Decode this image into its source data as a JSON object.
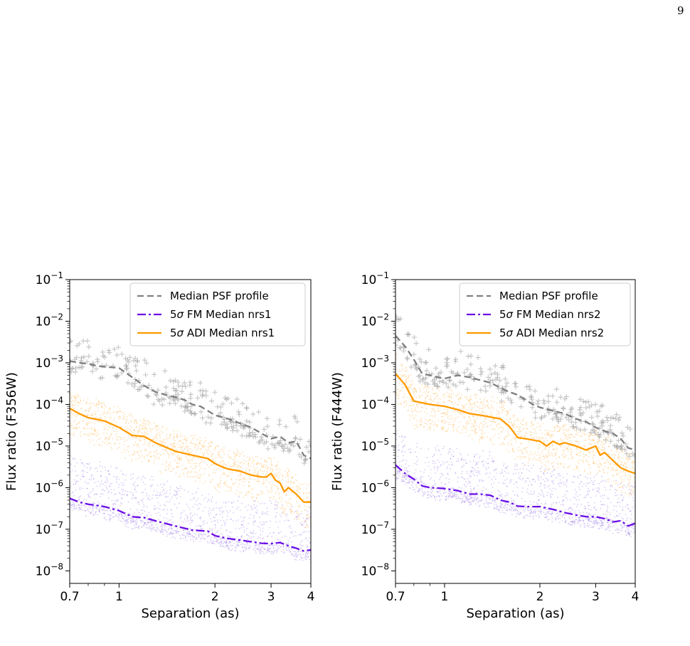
{
  "page_number": "9",
  "colors": {
    "psf": "#7f7f7f",
    "fm": "#6a0ee6",
    "adi": "#ff9a00",
    "psf_scatter": "#9a9a9a",
    "fm_scatter": "#a98ce8",
    "adi_scatter": "#ffbf66"
  },
  "chart_data": [
    {
      "type": "line",
      "xlabel": "Separation (as)",
      "ylabel": "Flux ratio (F356W)",
      "xscale": "log",
      "yscale": "log",
      "xlim": [
        0.7,
        4
      ],
      "ylim": [
        5e-09,
        0.1
      ],
      "x_ticks": [
        {
          "v": 0.7,
          "label": "0.7"
        },
        {
          "v": 1,
          "label": "1"
        },
        {
          "v": 2,
          "label": "2"
        },
        {
          "v": 3,
          "label": "3"
        },
        {
          "v": 4,
          "label": "4"
        }
      ],
      "y_ticks": [
        {
          "v": 1e-08,
          "base": "10",
          "exp": "−8"
        },
        {
          "v": 1e-07,
          "base": "10",
          "exp": "−7"
        },
        {
          "v": 1e-06,
          "base": "10",
          "exp": "−6"
        },
        {
          "v": 1e-05,
          "base": "10",
          "exp": "−5"
        },
        {
          "v": 0.0001,
          "base": "10",
          "exp": "−4"
        },
        {
          "v": 0.001,
          "base": "10",
          "exp": "−3"
        },
        {
          "v": 0.01,
          "base": "10",
          "exp": "−2"
        },
        {
          "v": 0.1,
          "base": "10",
          "exp": "−1"
        }
      ],
      "legend_position": "top-right",
      "series": [
        {
          "name": "Median PSF profile",
          "style": "dashed",
          "color_key": "psf",
          "x": [
            0.7,
            0.75,
            0.8,
            0.85,
            0.9,
            0.95,
            1.0,
            1.1,
            1.2,
            1.3,
            1.4,
            1.5,
            1.6,
            1.7,
            1.8,
            1.9,
            2.0,
            2.2,
            2.4,
            2.6,
            2.8,
            3.0,
            3.2,
            3.4,
            3.6,
            3.8,
            4.0
          ],
          "y": [
            0.0011,
            0.001,
            0.00095,
            0.00085,
            0.0008,
            0.00078,
            0.00075,
            0.00045,
            0.00028,
            0.0002,
            0.00017,
            0.00015,
            0.00013,
            0.0001,
            9e-05,
            7e-05,
            5.5e-05,
            4.5e-05,
            3.5e-05,
            2.8e-05,
            2e-05,
            1.5e-05,
            1.7e-05,
            1.2e-05,
            1.3e-05,
            6e-06,
            5e-06
          ]
        },
        {
          "name": "5σ FM Median nrs1",
          "style": "dashdot",
          "color_key": "fm",
          "x": [
            0.7,
            0.75,
            0.8,
            0.9,
            1.0,
            1.1,
            1.2,
            1.3,
            1.5,
            1.7,
            1.9,
            2.0,
            2.2,
            2.4,
            2.6,
            2.8,
            3.0,
            3.2,
            3.4,
            3.6,
            3.8,
            4.0
          ],
          "y": [
            5.5e-07,
            4.5e-07,
            4e-07,
            3.5e-07,
            2.8e-07,
            2e-07,
            1.9e-07,
            1.6e-07,
            1.2e-07,
            9.5e-08,
            9e-08,
            7e-08,
            6e-08,
            5.5e-08,
            5e-08,
            4.6e-08,
            4.5e-08,
            4.8e-08,
            4e-08,
            3.5e-08,
            3e-08,
            3.2e-08
          ]
        },
        {
          "name": "5σ ADI Median nrs1",
          "style": "solid",
          "color_key": "adi",
          "x": [
            0.7,
            0.75,
            0.8,
            0.9,
            1.0,
            1.1,
            1.2,
            1.3,
            1.5,
            1.7,
            1.9,
            2.0,
            2.1,
            2.2,
            2.4,
            2.6,
            2.8,
            2.9,
            3.0,
            3.1,
            3.2,
            3.3,
            3.4,
            3.6,
            3.8,
            4.0
          ],
          "y": [
            8e-05,
            6e-05,
            4.8e-05,
            4e-05,
            2.8e-05,
            1.8e-05,
            1.7e-05,
            1.2e-05,
            7.5e-06,
            6e-06,
            5e-06,
            3.8e-06,
            3.2e-06,
            2.8e-06,
            2.5e-06,
            2e-06,
            1.8e-06,
            1.8e-06,
            2.2e-06,
            1.5e-06,
            1.3e-06,
            8e-07,
            1e-06,
            7e-07,
            4.5e-07,
            4.5e-07
          ]
        }
      ]
    },
    {
      "type": "line",
      "xlabel": "Separation (as)",
      "ylabel": "Flux ratio (F444W)",
      "xscale": "log",
      "yscale": "log",
      "xlim": [
        0.7,
        4
      ],
      "ylim": [
        5e-09,
        0.1
      ],
      "x_ticks": [
        {
          "v": 0.7,
          "label": "0.7"
        },
        {
          "v": 1,
          "label": "1"
        },
        {
          "v": 2,
          "label": "2"
        },
        {
          "v": 3,
          "label": "3"
        },
        {
          "v": 4,
          "label": "4"
        }
      ],
      "y_ticks": [
        {
          "v": 1e-08,
          "base": "10",
          "exp": "−8"
        },
        {
          "v": 1e-07,
          "base": "10",
          "exp": "−7"
        },
        {
          "v": 1e-06,
          "base": "10",
          "exp": "−6"
        },
        {
          "v": 1e-05,
          "base": "10",
          "exp": "−5"
        },
        {
          "v": 0.0001,
          "base": "10",
          "exp": "−4"
        },
        {
          "v": 0.001,
          "base": "10",
          "exp": "−3"
        },
        {
          "v": 0.01,
          "base": "10",
          "exp": "−2"
        },
        {
          "v": 0.1,
          "base": "10",
          "exp": "−1"
        }
      ],
      "legend_position": "top-right",
      "series": [
        {
          "name": "Median PSF profile",
          "style": "dashed",
          "color_key": "psf",
          "x": [
            0.7,
            0.75,
            0.8,
            0.85,
            0.9,
            0.95,
            1.0,
            1.1,
            1.2,
            1.3,
            1.4,
            1.5,
            1.6,
            1.7,
            1.8,
            1.9,
            2.0,
            2.2,
            2.4,
            2.6,
            2.8,
            3.0,
            3.2,
            3.4,
            3.6,
            3.8,
            4.0
          ],
          "y": [
            0.0045,
            0.0025,
            0.0012,
            0.00055,
            0.0005,
            0.00045,
            0.00042,
            0.0005,
            0.00045,
            0.00038,
            0.00033,
            0.00025,
            0.0002,
            0.00017,
            0.00013,
            0.0001,
            8.5e-05,
            7e-05,
            6e-05,
            4.5e-05,
            3.8e-05,
            2.8e-05,
            2.3e-05,
            2e-05,
            1.5e-05,
            9e-06,
            8e-06
          ]
        },
        {
          "name": "5σ FM Median nrs2",
          "style": "dashdot",
          "color_key": "fm",
          "x": [
            0.7,
            0.75,
            0.8,
            0.85,
            0.9,
            1.0,
            1.1,
            1.2,
            1.3,
            1.4,
            1.5,
            1.6,
            1.7,
            1.8,
            2.0,
            2.2,
            2.4,
            2.6,
            2.8,
            3.0,
            3.2,
            3.4,
            3.6,
            3.8,
            4.0
          ],
          "y": [
            3.5e-06,
            2.2e-06,
            1.6e-06,
            1.1e-06,
            1e-06,
            9.5e-07,
            8.5e-07,
            7e-07,
            7e-07,
            6.5e-07,
            5e-07,
            4.5e-07,
            3.6e-07,
            3.5e-07,
            3.5e-07,
            3e-07,
            2.5e-07,
            2.2e-07,
            2e-07,
            2e-07,
            1.8e-07,
            1.5e-07,
            1.6e-07,
            1.2e-07,
            1.4e-07
          ]
        },
        {
          "name": "5σ ADI Median nrs2",
          "style": "solid",
          "color_key": "adi",
          "x": [
            0.7,
            0.75,
            0.8,
            0.9,
            1.0,
            1.1,
            1.2,
            1.3,
            1.5,
            1.6,
            1.7,
            1.8,
            2.0,
            2.1,
            2.2,
            2.3,
            2.4,
            2.6,
            2.8,
            3.0,
            3.1,
            3.2,
            3.4,
            3.6,
            3.8,
            4.0
          ],
          "y": [
            0.00055,
            0.0003,
            0.00012,
            0.0001,
            9e-05,
            7.5e-05,
            6e-05,
            5.5e-05,
            4.5e-05,
            3e-05,
            1.6e-05,
            1.5e-05,
            1.3e-05,
            1e-05,
            1.3e-05,
            1.1e-05,
            1.2e-05,
            1e-05,
            8e-06,
            1e-05,
            6e-06,
            7e-06,
            4.5e-06,
            3e-06,
            2.5e-06,
            2.2e-06
          ]
        }
      ]
    }
  ]
}
